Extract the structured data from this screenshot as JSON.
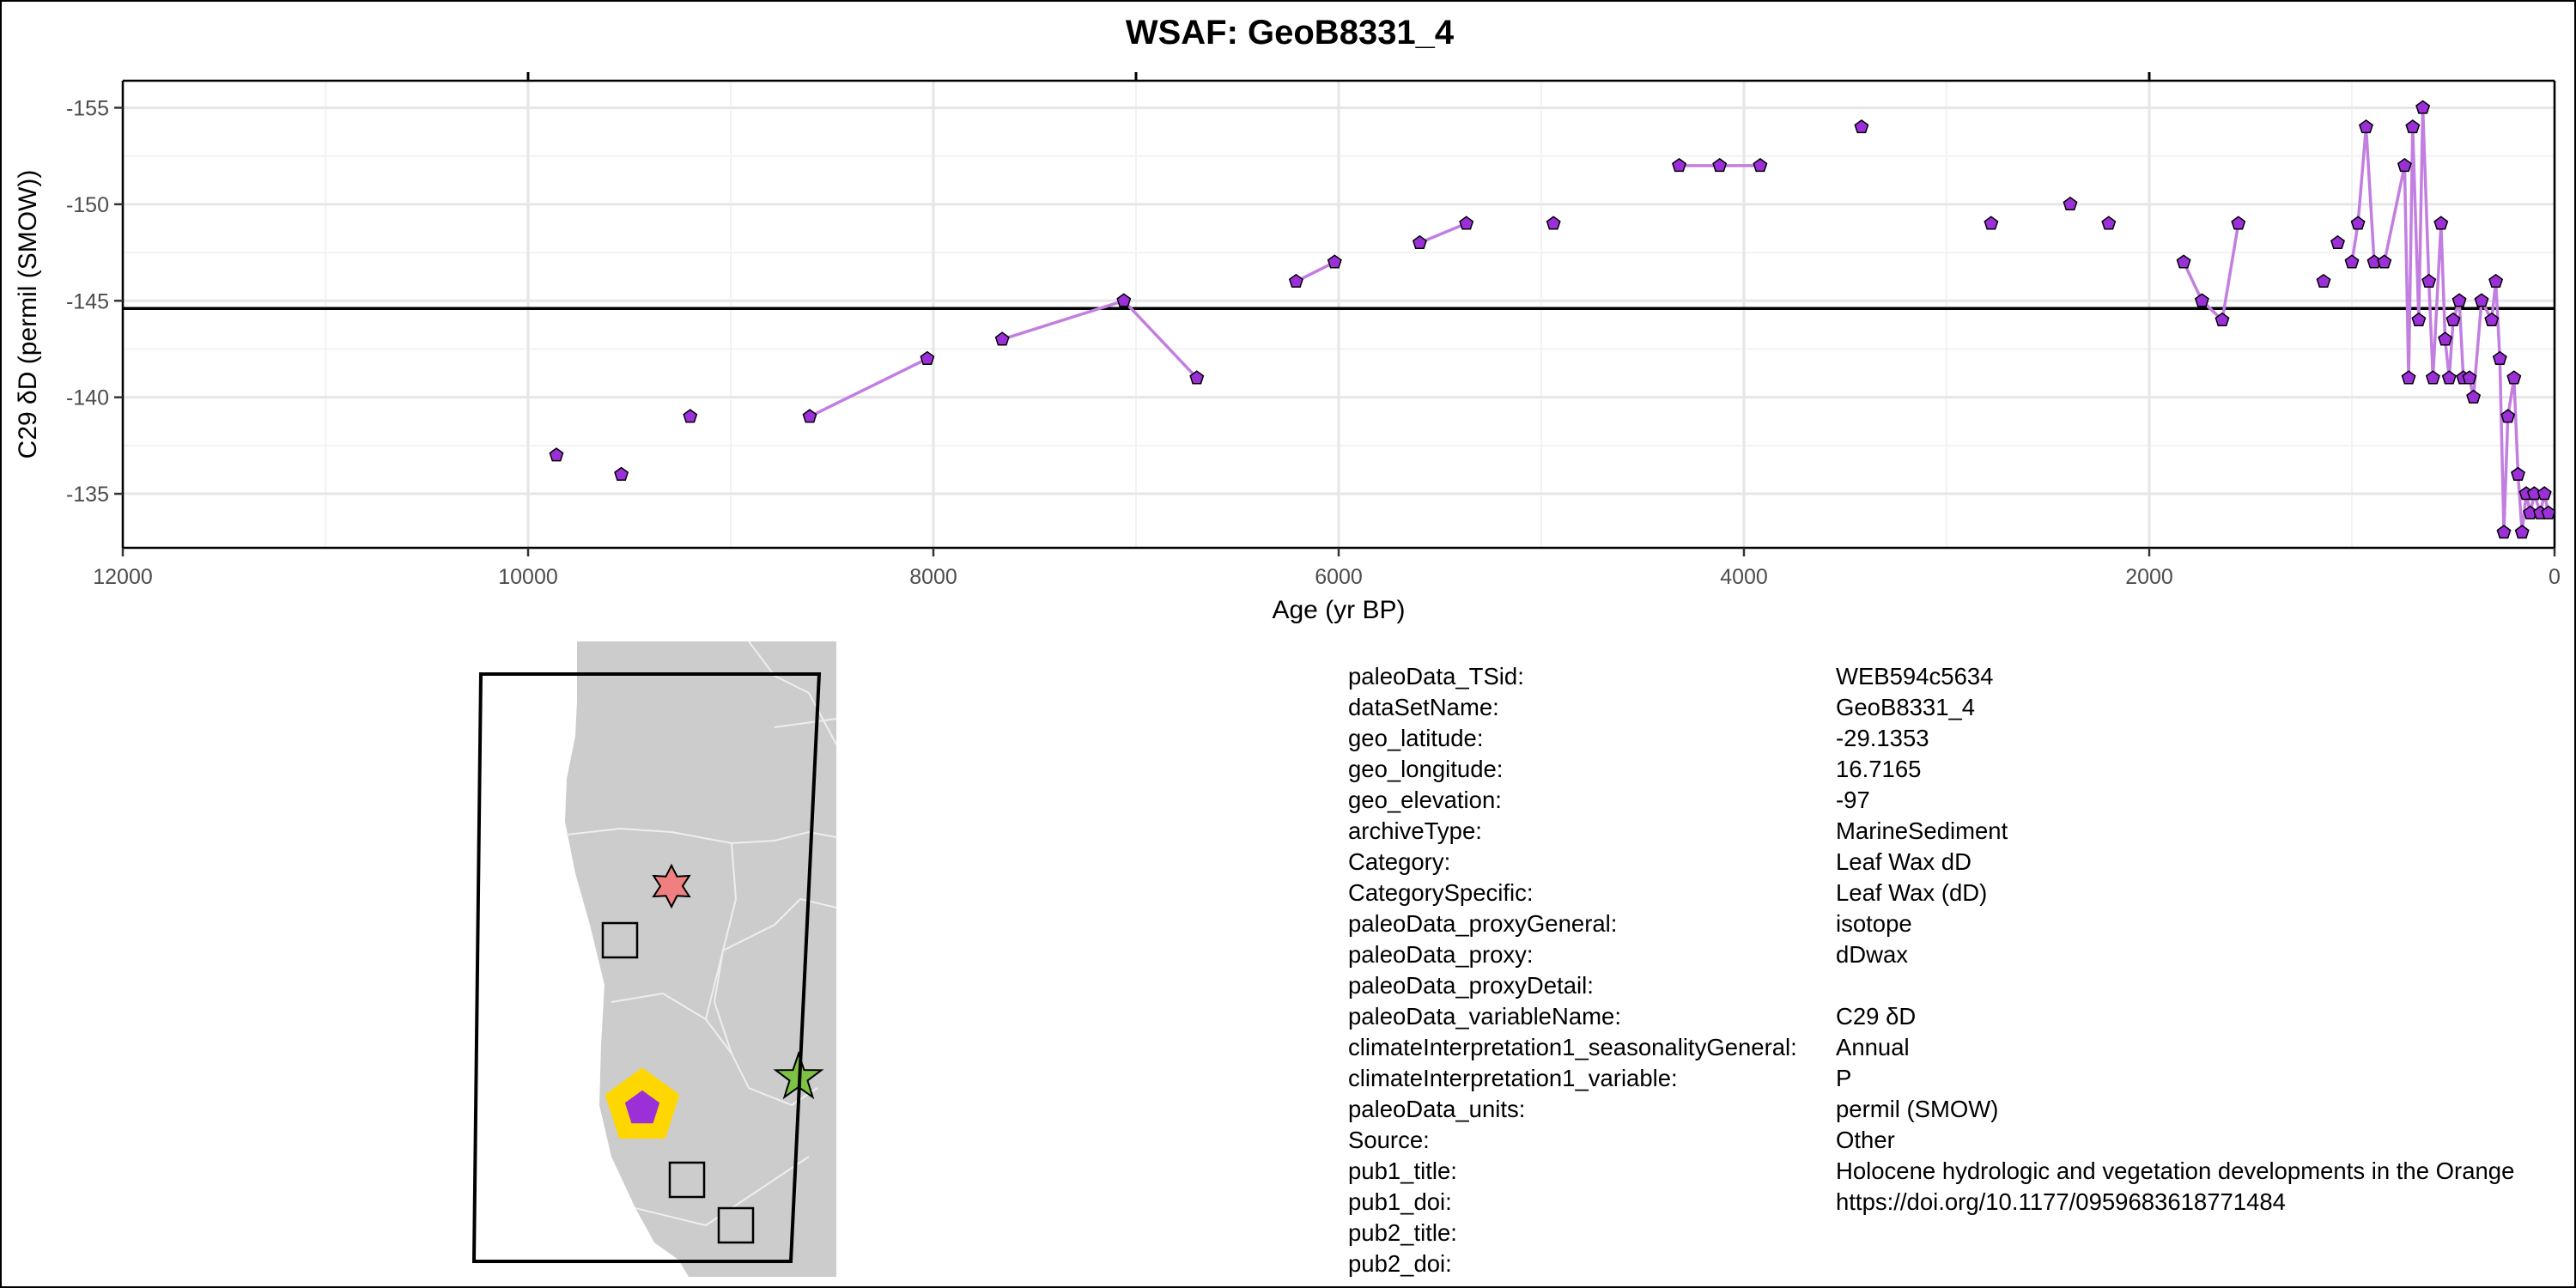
{
  "title": "WSAF: GeoB8331_4",
  "chart_data": {
    "type": "line",
    "title": "WSAF: GeoB8331_4",
    "xlabel": "Age (yr BP)",
    "ylabel": "C29 δD (permil (SMOW))",
    "xlim": [
      12000,
      0
    ],
    "ylim": [
      -132.2,
      -156.4
    ],
    "x_reversed": true,
    "y_reversed": true,
    "grid": true,
    "x_ticks": [
      12000,
      10000,
      8000,
      6000,
      4000,
      2000,
      0
    ],
    "y_ticks": [
      -155,
      -150,
      -145,
      -140,
      -135
    ],
    "hline": -144.6,
    "series_color": "#9b30d9",
    "line_color": "#c27ee0",
    "series": [
      {
        "x": [
          9860,
          9540,
          9200,
          8610,
          8030,
          7660,
          7060,
          6700,
          6210,
          6020,
          5600,
          5370,
          4940,
          4320,
          4120,
          3920,
          3420,
          2780,
          2390,
          2200,
          1830,
          1740,
          1640,
          1560,
          1140,
          1070,
          1000,
          970,
          930,
          890,
          840,
          740,
          720,
          700,
          670,
          650,
          620,
          600,
          560,
          540,
          520,
          500,
          470,
          450,
          420,
          400,
          360,
          310,
          290,
          270,
          250,
          230,
          200,
          180,
          160,
          140,
          120,
          100,
          70,
          50,
          30
        ],
        "y": [
          -137,
          -136,
          -139,
          -139,
          -142,
          -143,
          -145,
          -141,
          -146,
          -147,
          -148,
          -149,
          -149,
          -152,
          -152,
          -152,
          -154,
          -149,
          -150,
          -149,
          -147,
          -145,
          -144,
          -149,
          -146,
          -148,
          -147,
          -149,
          -154,
          -147,
          -147,
          -152,
          -141,
          -154,
          -144,
          -155,
          -146,
          -141,
          -149,
          -143,
          -141,
          -144,
          -145,
          -141,
          -141,
          -140,
          -145,
          -144,
          -146,
          -142,
          -133,
          -139,
          -141,
          -136,
          -133,
          -135,
          -134,
          -135,
          -134,
          -135,
          -134
        ]
      }
    ],
    "segments": [
      [
        0,
        0
      ],
      [
        1,
        1
      ],
      [
        2,
        2
      ],
      [
        3,
        4
      ],
      [
        5,
        7
      ],
      [
        8,
        9
      ],
      [
        10,
        11
      ],
      [
        12,
        12
      ],
      [
        13,
        15
      ],
      [
        16,
        16
      ],
      [
        17,
        17
      ],
      [
        18,
        18
      ],
      [
        19,
        19
      ],
      [
        20,
        22
      ],
      [
        22,
        23
      ],
      [
        24,
        24
      ],
      [
        25,
        25
      ],
      [
        26,
        27
      ],
      [
        27,
        31
      ],
      [
        31,
        34
      ],
      [
        34,
        60
      ]
    ]
  },
  "map": {
    "land_color": "#cccccc",
    "border_color": "#eeeeee",
    "frame_color": "#000000",
    "markers": [
      {
        "shape": "star6",
        "fill": "#f08080"
      },
      {
        "shape": "square",
        "fill": "#cccccc"
      },
      {
        "shape": "square",
        "fill": "#cccccc"
      },
      {
        "shape": "square",
        "fill": "#cccccc"
      },
      {
        "shape": "star5",
        "fill": "#7dc242"
      },
      {
        "shape": "pentagon-highlight",
        "fill": "#9b30d9",
        "ring": "#ffd700"
      }
    ]
  },
  "metadata": [
    {
      "key": "paleoData_TSid:",
      "value": "WEB594c5634"
    },
    {
      "key": "dataSetName:",
      "value": "GeoB8331_4"
    },
    {
      "key": "geo_latitude:",
      "value": "-29.1353"
    },
    {
      "key": "geo_longitude:",
      "value": "16.7165"
    },
    {
      "key": "geo_elevation:",
      "value": "-97"
    },
    {
      "key": "archiveType:",
      "value": "MarineSediment"
    },
    {
      "key": "Category:",
      "value": "Leaf Wax dD"
    },
    {
      "key": "CategorySpecific:",
      "value": "Leaf Wax (dD)"
    },
    {
      "key": "paleoData_proxyGeneral:",
      "value": "isotope"
    },
    {
      "key": "paleoData_proxy:",
      "value": "dDwax"
    },
    {
      "key": "paleoData_proxyDetail:",
      "value": ""
    },
    {
      "key": "paleoData_variableName:",
      "value": "C29 δD"
    },
    {
      "key": "climateInterpretation1_seasonalityGeneral:",
      "value": "Annual"
    },
    {
      "key": "climateInterpretation1_variable:",
      "value": "P"
    },
    {
      "key": "paleoData_units:",
      "value": "permil (SMOW)"
    },
    {
      "key": "Source:",
      "value": "Other"
    },
    {
      "key": "pub1_title:",
      "value": "Holocene hydrologic and vegetation developments in the Orange"
    },
    {
      "key": "pub1_doi:",
      "value": "https://doi.org/10.1177/0959683618771484"
    },
    {
      "key": "pub2_title:",
      "value": ""
    },
    {
      "key": "pub2_doi:",
      "value": ""
    }
  ]
}
